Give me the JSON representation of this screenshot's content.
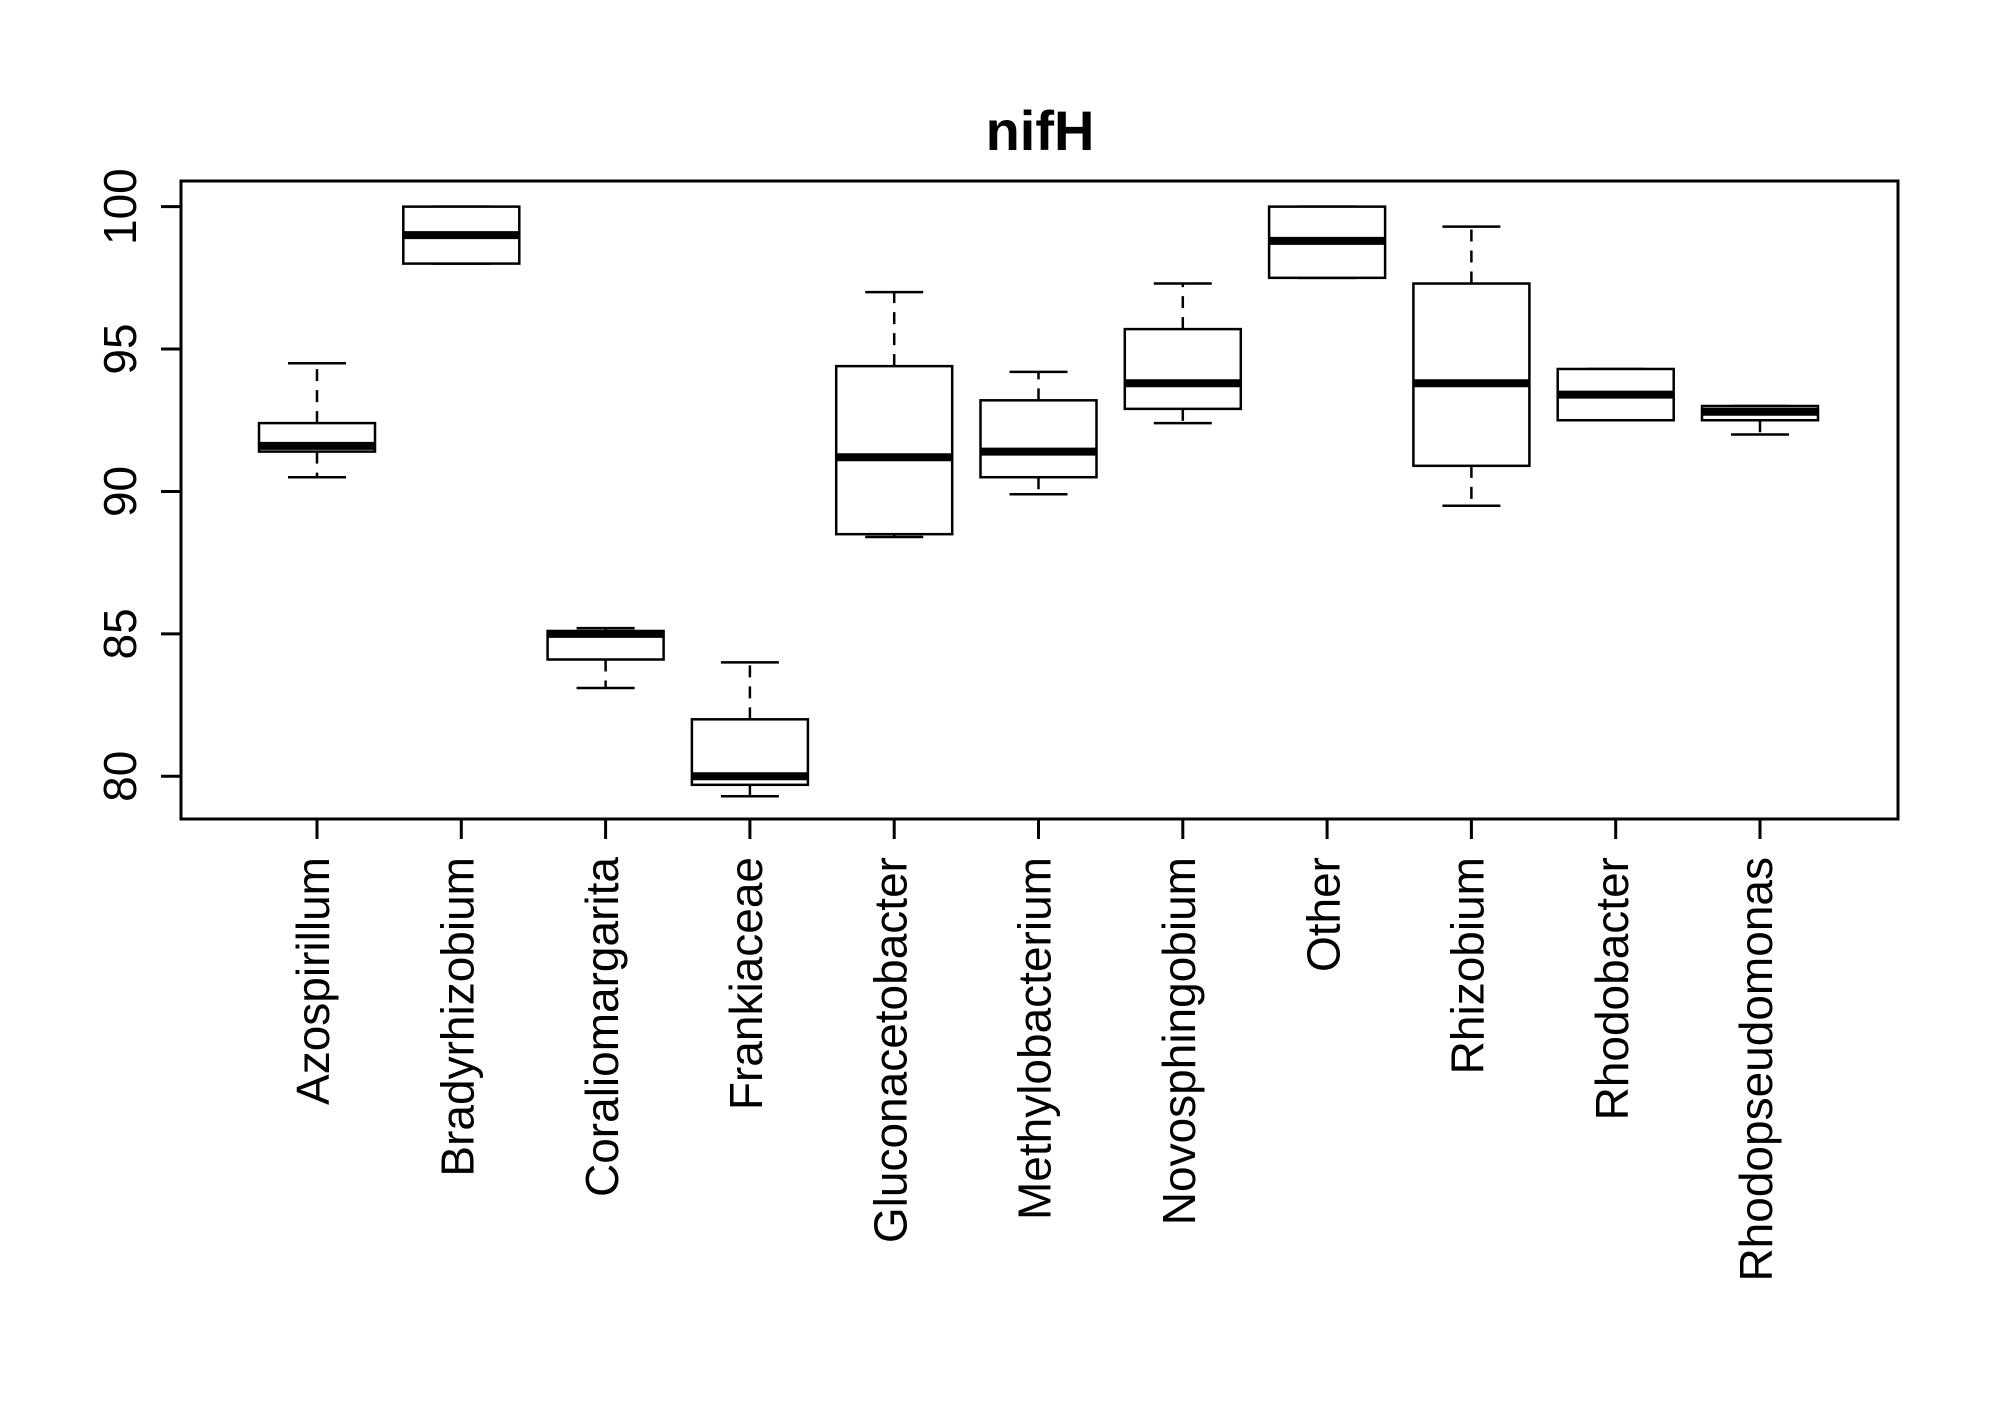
{
  "chart_data": {
    "type": "box",
    "title": "nifH",
    "xlabel": "",
    "ylabel": "",
    "ylim": [
      78.5,
      100.9
    ],
    "yticks": [
      80,
      85,
      90,
      95,
      100
    ],
    "categories": [
      "Azospirillum",
      "Bradyrhizobium",
      "Coraliomargarita",
      "Frankiaceae",
      "Gluconacetobacter",
      "Methylobacterium",
      "Novosphingobium",
      "Other",
      "Rhizobium",
      "Rhodobacter",
      "Rhodopseudomonas"
    ],
    "boxes": [
      {
        "category": "Azospirillum",
        "whisker_low": 90.5,
        "q1": 91.4,
        "median": 91.6,
        "q3": 92.4,
        "whisker_high": 94.5
      },
      {
        "category": "Bradyrhizobium",
        "whisker_low": 98.0,
        "q1": 98.0,
        "median": 99.0,
        "q3": 100.0,
        "whisker_high": 100.0
      },
      {
        "category": "Coraliomargarita",
        "whisker_low": 83.1,
        "q1": 84.1,
        "median": 85.0,
        "q3": 85.1,
        "whisker_high": 85.2
      },
      {
        "category": "Frankiaceae",
        "whisker_low": 79.3,
        "q1": 79.7,
        "median": 80.0,
        "q3": 82.0,
        "whisker_high": 84.0
      },
      {
        "category": "Gluconacetobacter",
        "whisker_low": 88.4,
        "q1": 88.5,
        "median": 91.2,
        "q3": 94.4,
        "whisker_high": 97.0
      },
      {
        "category": "Methylobacterium",
        "whisker_low": 89.9,
        "q1": 90.5,
        "median": 91.4,
        "q3": 93.2,
        "whisker_high": 94.2
      },
      {
        "category": "Novosphingobium",
        "whisker_low": 92.4,
        "q1": 92.9,
        "median": 93.8,
        "q3": 95.7,
        "whisker_high": 97.3
      },
      {
        "category": "Other",
        "whisker_low": 97.5,
        "q1": 97.5,
        "median": 98.8,
        "q3": 100.0,
        "whisker_high": 100.0
      },
      {
        "category": "Rhizobium",
        "whisker_low": 89.5,
        "q1": 90.9,
        "median": 93.8,
        "q3": 97.3,
        "whisker_high": 99.3
      },
      {
        "category": "Rhodobacter",
        "whisker_low": 92.5,
        "q1": 92.5,
        "median": 93.4,
        "q3": 94.3,
        "whisker_high": 94.3
      },
      {
        "category": "Rhodopseudomonas",
        "whisker_low": 92.0,
        "q1": 92.5,
        "median": 92.8,
        "q3": 93.0,
        "whisker_high": 93.0
      }
    ],
    "grid": false,
    "legend": "none"
  }
}
